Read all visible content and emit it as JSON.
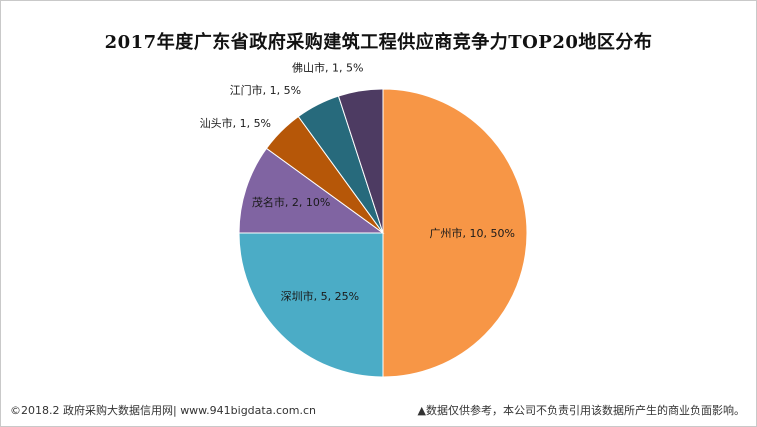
{
  "chart_data": {
    "type": "pie",
    "title": "2017年度广东省政府采购建筑工程供应商竞争力TOP20地区分布",
    "start_angle_deg": 0,
    "direction": "clockwise",
    "slices": [
      {
        "name": "广州市",
        "value": 10,
        "percent": "50%",
        "label": "广州市, 10, 50%",
        "color": "#f79646"
      },
      {
        "name": "深圳市",
        "value": 5,
        "percent": "25%",
        "label": "深圳市, 5, 25%",
        "color": "#4bacc6"
      },
      {
        "name": "茂名市",
        "value": 2,
        "percent": "10%",
        "label": "茂名市, 2, 10%",
        "color": "#8064a2"
      },
      {
        "name": "汕头市",
        "value": 1,
        "percent": "5%",
        "label": "汕头市, 1, 5%",
        "color": "#b65708"
      },
      {
        "name": "江门市",
        "value": 1,
        "percent": "5%",
        "label": "江门市, 1, 5%",
        "color": "#276a7c"
      },
      {
        "name": "佛山市",
        "value": 1,
        "percent": "5%",
        "label": "佛山市, 1, 5%",
        "color": "#4d3b62"
      }
    ]
  },
  "footer": {
    "left": "©2018.2 政府采购大数据信用网| www.941bigdata.com.cn",
    "right": "▲数据仅供参考，本公司不负责引用该数据所产生的商业负面影响。"
  }
}
